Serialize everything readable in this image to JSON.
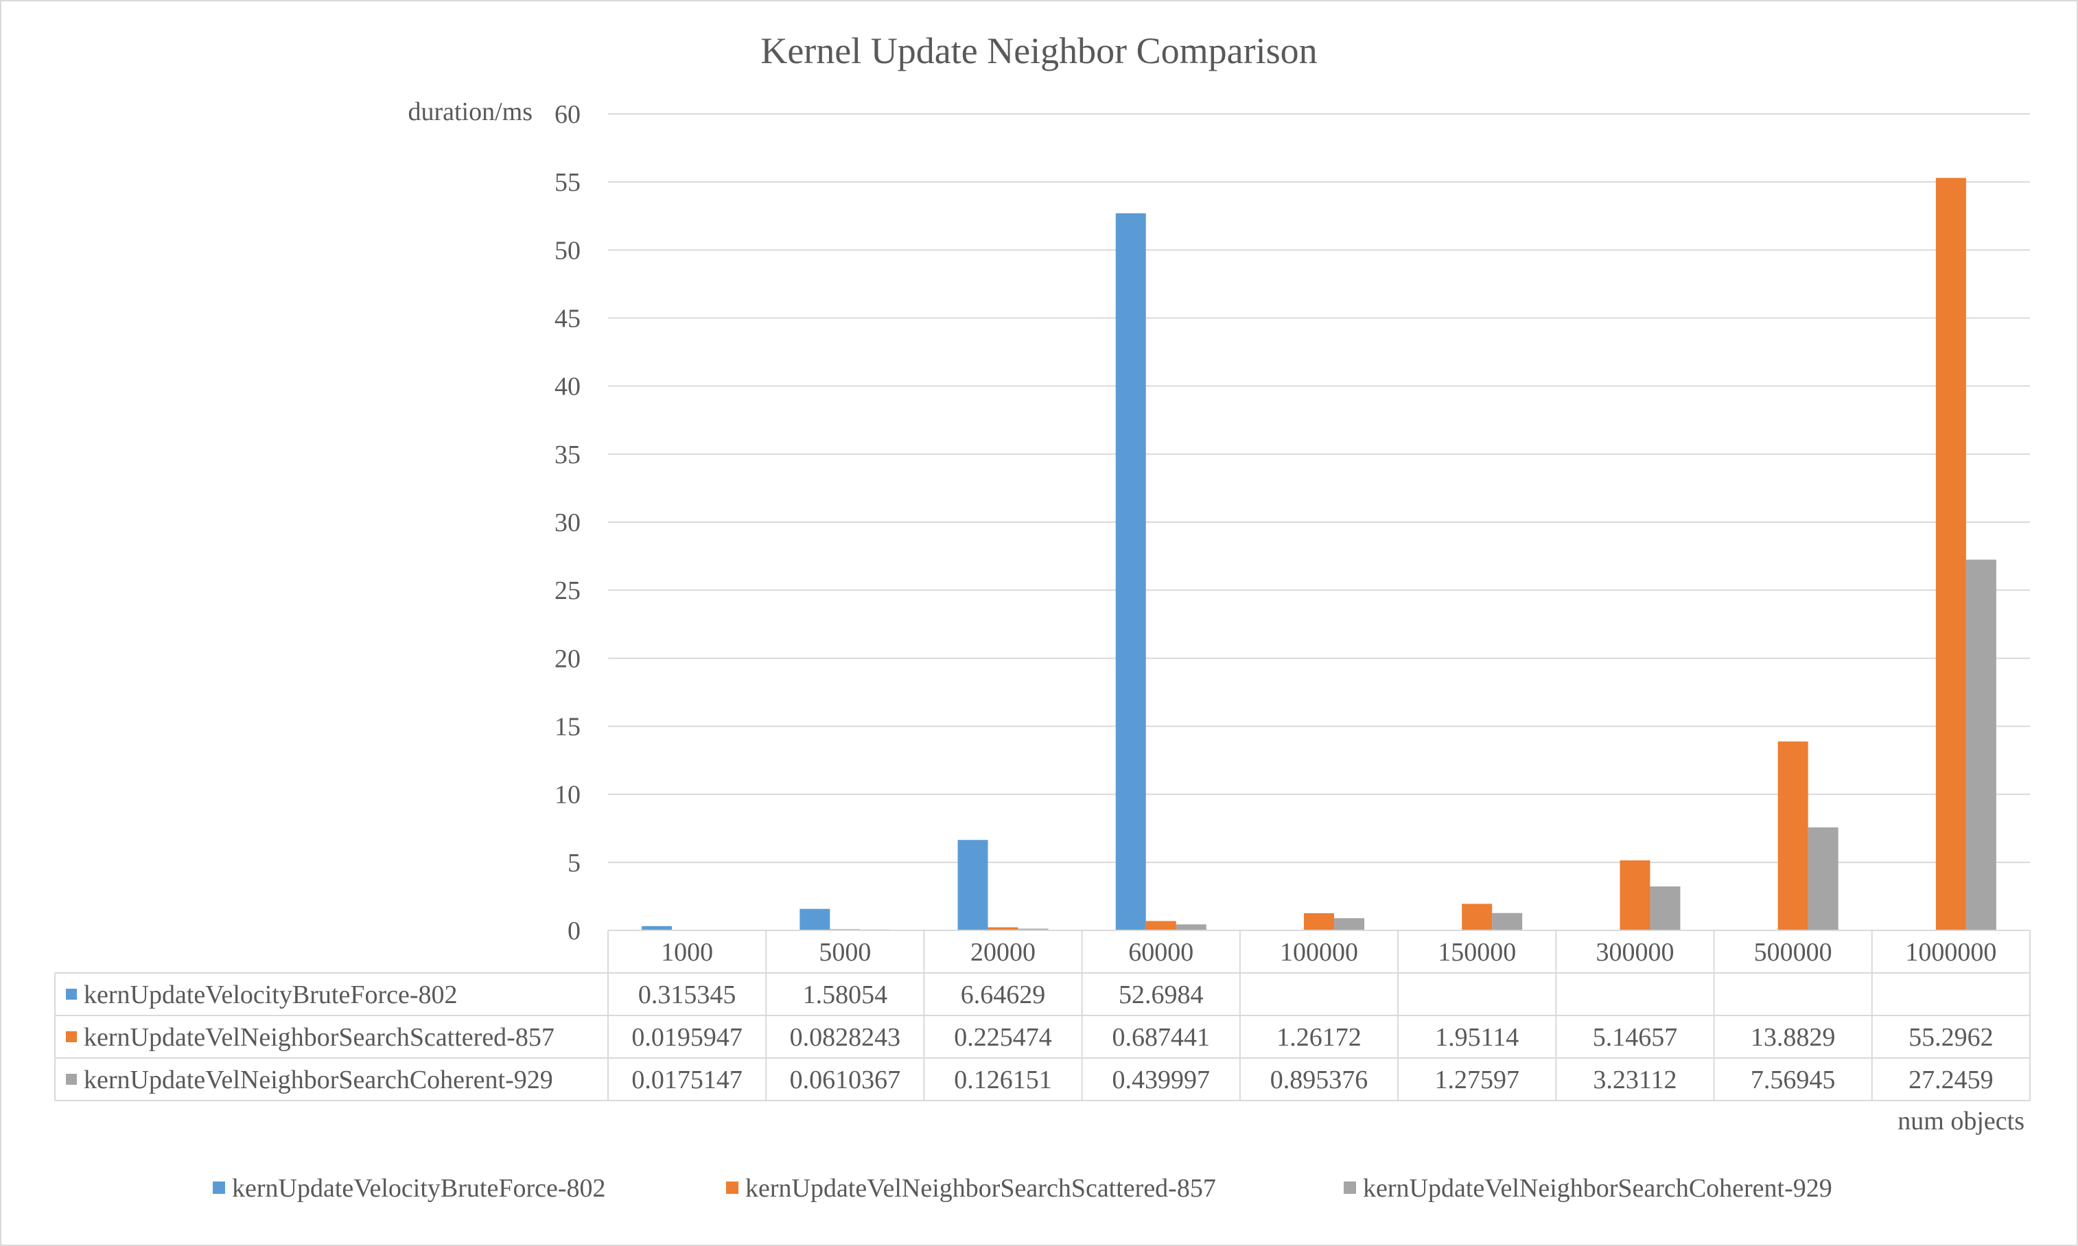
{
  "chart_data": {
    "type": "bar",
    "title": "Kernel Update Neighbor Comparison",
    "ylabel": "duration/ms",
    "xlabel": "num objects",
    "ylim": [
      0,
      60
    ],
    "yticks": [
      "0",
      "5",
      "10",
      "15",
      "20",
      "25",
      "30",
      "35",
      "40",
      "45",
      "50",
      "55",
      "60"
    ],
    "grid": true,
    "legend_position": "bottom",
    "data_table": true,
    "categories": [
      "1000",
      "5000",
      "20000",
      "60000",
      "100000",
      "150000",
      "300000",
      "500000",
      "1000000"
    ],
    "series": [
      {
        "name": "kernUpdateVelocityBruteForce-802",
        "color": "#5b9bd5",
        "values": [
          0.315345,
          1.58054,
          6.64629,
          52.6984,
          null,
          null,
          null,
          null,
          null
        ],
        "labels": [
          "0.315345",
          "1.58054",
          "6.64629",
          "52.6984",
          "",
          "",
          "",
          "",
          ""
        ]
      },
      {
        "name": "kernUpdateVelNeighborSearchScattered-857",
        "color": "#ed7d31",
        "values": [
          0.0195947,
          0.0828243,
          0.225474,
          0.687441,
          1.26172,
          1.95114,
          5.14657,
          13.8829,
          55.2962
        ],
        "labels": [
          "0.0195947",
          "0.0828243",
          "0.225474",
          "0.687441",
          "1.26172",
          "1.95114",
          "5.14657",
          "13.8829",
          "55.2962"
        ]
      },
      {
        "name": "kernUpdateVelNeighborSearchCoherent-929",
        "color": "#a5a5a5",
        "values": [
          0.0175147,
          0.0610367,
          0.126151,
          0.439997,
          0.895376,
          1.27597,
          3.23112,
          7.56945,
          27.2459
        ],
        "labels": [
          "0.0175147",
          "0.0610367",
          "0.126151",
          "0.439997",
          "0.895376",
          "1.27597",
          "3.23112",
          "7.56945",
          "27.2459"
        ]
      }
    ]
  },
  "colors": {
    "gridline": "#d9d9d9",
    "text": "#595959",
    "frame": "#d9d9d9"
  }
}
